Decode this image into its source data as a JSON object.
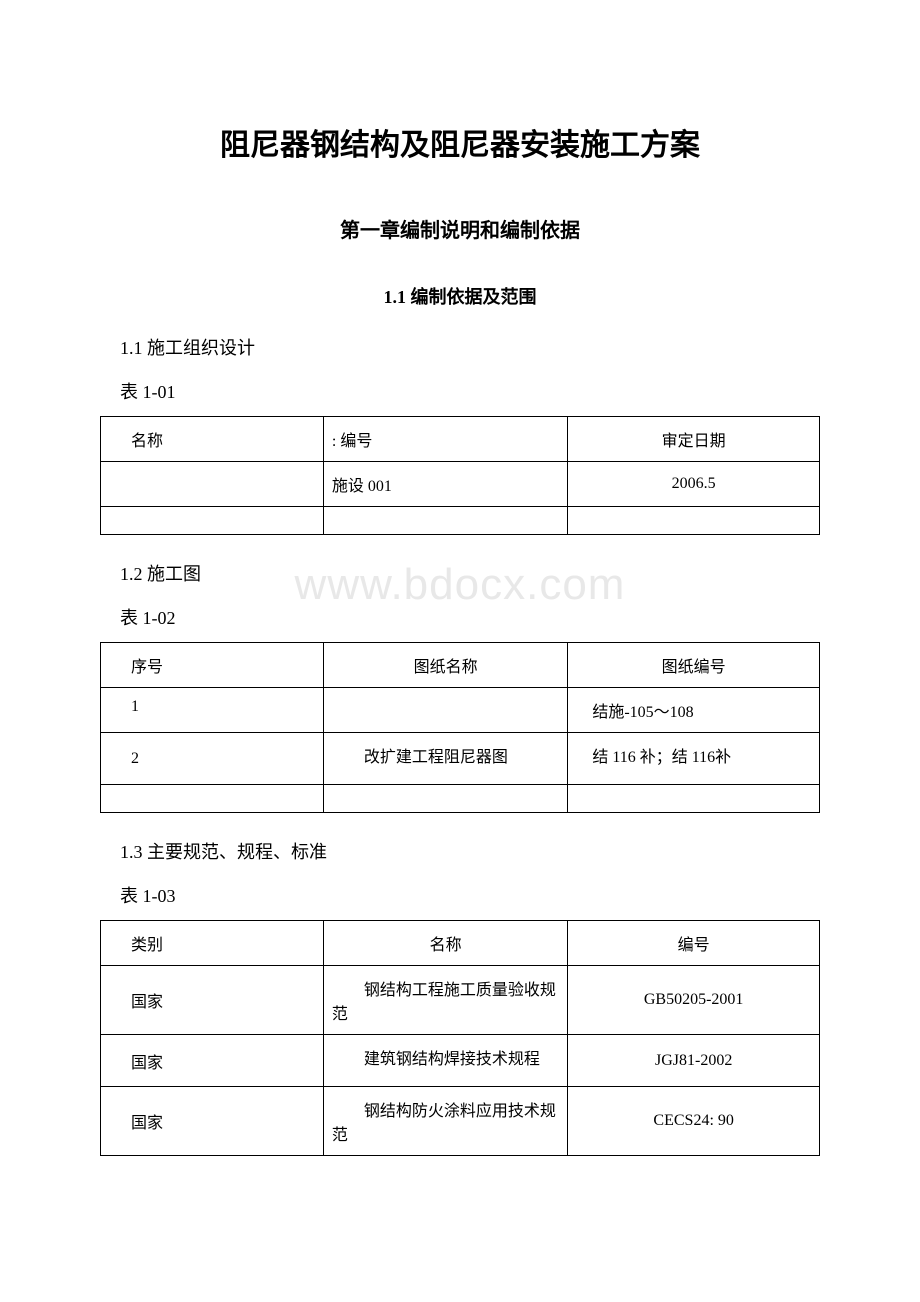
{
  "watermark": "www.bdocx.com",
  "doc_title": "阻尼器钢结构及阻尼器安装施工方案",
  "chapter_title": "第一章编制说明和编制依据",
  "section_title": "1.1 编制依据及范围",
  "subsection1": "1.1 施工组织设计",
  "table1": {
    "label": "表 1-01",
    "headers": [
      "名称",
      ": 编号",
      "审定日期"
    ],
    "rows": [
      [
        "",
        "施设 001",
        "2006.5"
      ],
      [
        "",
        "",
        ""
      ]
    ]
  },
  "subsection2": "1.2 施工图",
  "table2": {
    "label": "表 1-02",
    "headers": [
      "序号",
      "图纸名称",
      "图纸编号"
    ],
    "rows": [
      [
        "1",
        "",
        "结施-105～108"
      ],
      [
        "2",
        "改扩建工程阻尼器图",
        "结 116 补；结 116补"
      ],
      [
        "",
        "",
        ""
      ]
    ]
  },
  "subsection3": "1.3 主要规范、规程、标准",
  "table3": {
    "label": "表 1-03",
    "headers": [
      "类别",
      "名称",
      "编号"
    ],
    "rows": [
      [
        "国家",
        "钢结构工程施工质量验收规范",
        "GB50205-2001"
      ],
      [
        "国家",
        "建筑钢结构焊接技术规程",
        "JGJ81-2002"
      ],
      [
        "国家",
        "钢结构防火涂料应用技术规范",
        "CECS24: 90"
      ]
    ]
  }
}
